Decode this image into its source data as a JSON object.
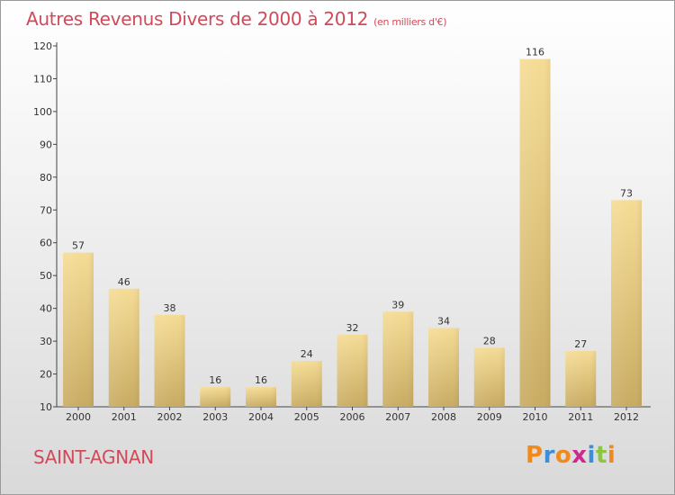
{
  "title": "Autres Revenus Divers de 2000 à 2012",
  "unit": "(en milliers d'€)",
  "commune": "SAINT-AGNAN",
  "logo": {
    "letters": [
      "P",
      "r",
      "o",
      "x",
      "i",
      "t",
      "i"
    ],
    "colors": [
      "#f08a1c",
      "#3a8fd6",
      "#f08a1c",
      "#cc2b8e",
      "#3a8fd6",
      "#8cc63f",
      "#f08a1c"
    ]
  },
  "colors": {
    "title": "#d04a59",
    "bar_light": "#f5dc95",
    "bar_dark": "#c8ab62"
  },
  "chart_data": {
    "type": "bar",
    "categories": [
      "2000",
      "2001",
      "2002",
      "2003",
      "2004",
      "2005",
      "2006",
      "2007",
      "2008",
      "2009",
      "2010",
      "2011",
      "2012"
    ],
    "values": [
      57,
      46,
      38,
      16,
      16,
      24,
      32,
      39,
      34,
      28,
      116,
      27,
      73
    ],
    "ylim": [
      10,
      120
    ],
    "yticks": [
      10,
      20,
      30,
      40,
      50,
      60,
      70,
      80,
      90,
      100,
      110,
      120
    ],
    "grid": false
  }
}
